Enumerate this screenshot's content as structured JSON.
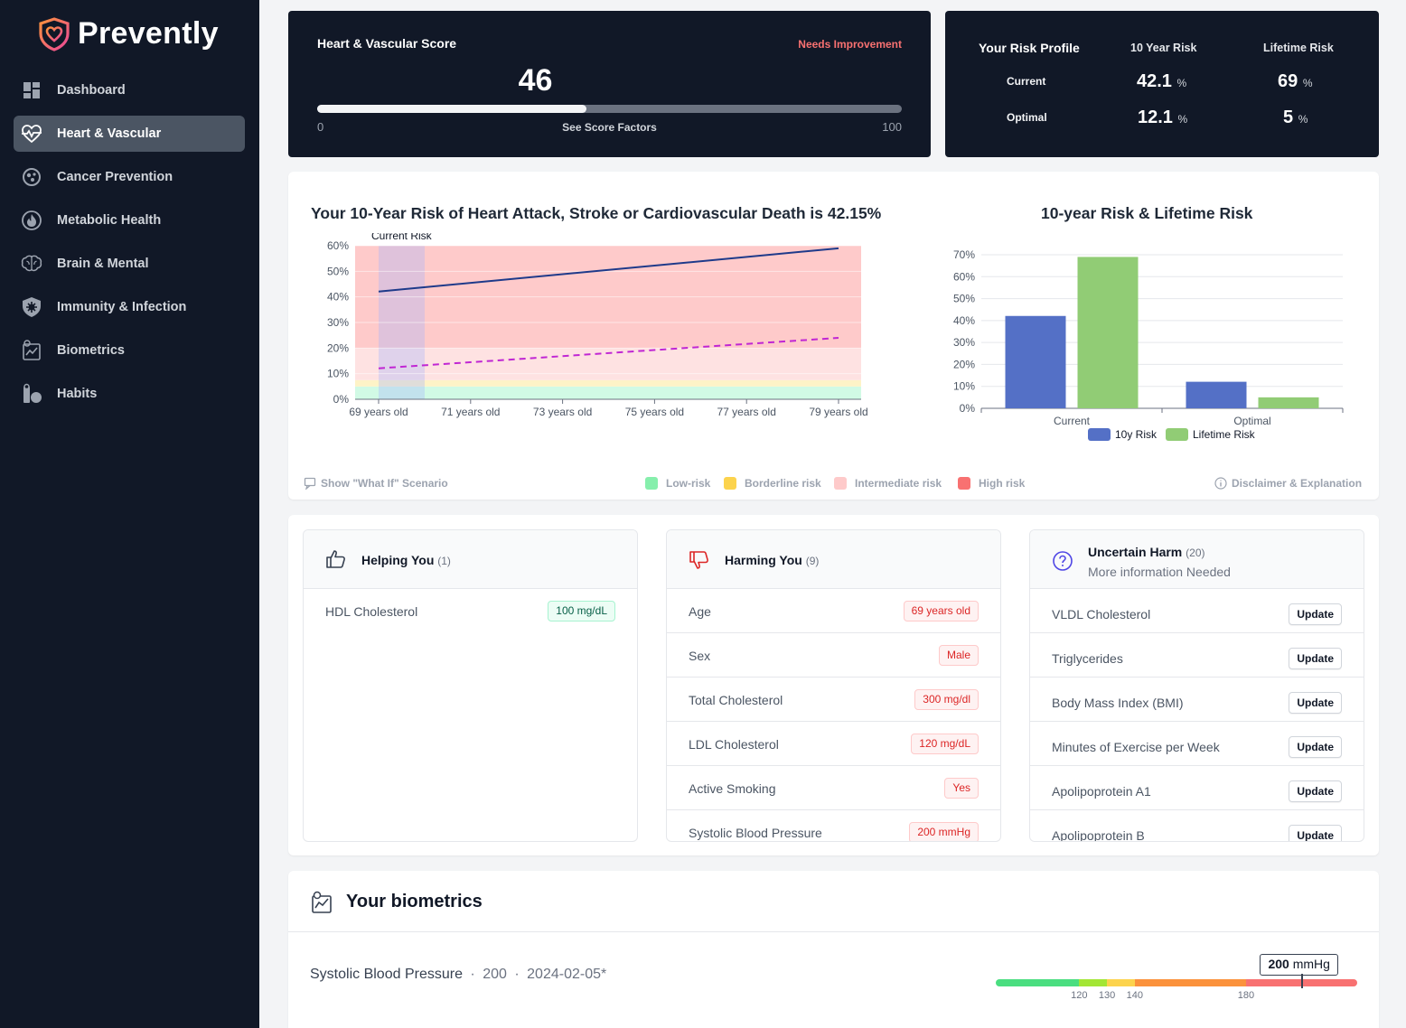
{
  "app": {
    "name": "Prevently",
    "brand_color": "#f472b6"
  },
  "sidebar": {
    "items": [
      {
        "label": "Dashboard",
        "icon": "dashboard-icon",
        "active": false
      },
      {
        "label": "Heart & Vascular",
        "icon": "heart-pulse-icon",
        "active": true
      },
      {
        "label": "Cancer Prevention",
        "icon": "cell-icon",
        "active": false
      },
      {
        "label": "Metabolic Health",
        "icon": "flame-icon",
        "active": false
      },
      {
        "label": "Brain & Mental",
        "icon": "brain-icon",
        "active": false
      },
      {
        "label": "Immunity & Infection",
        "icon": "shield-virus-icon",
        "active": false
      },
      {
        "label": "Biometrics",
        "icon": "biometrics-icon",
        "active": false
      },
      {
        "label": "Habits",
        "icon": "habits-icon",
        "active": false
      }
    ]
  },
  "score": {
    "title": "Heart & Vascular Score",
    "status": "Needs Improvement",
    "value": "46",
    "fraction": 0.46,
    "min": "0",
    "max": "100",
    "link": "See Score Factors"
  },
  "risk_profile": {
    "title": "Your Risk Profile",
    "col_10y": "10 Year Risk",
    "col_lifetime": "Lifetime Risk",
    "current_label": "Current",
    "optimal_label": "Optimal",
    "current_10y": "42.1",
    "current_lifetime": "69",
    "optimal_10y": "12.1",
    "optimal_lifetime": "5",
    "unit": "%"
  },
  "charts": {
    "line_title": "Your 10-Year Risk of Heart Attack, Stroke or Cardiovascular Death is 42.15%",
    "bar_title": "10-year Risk & Lifetime Risk"
  },
  "chart_data": [
    {
      "type": "line",
      "annotation": "Current Risk",
      "x": [
        "69 years old",
        "71 years old",
        "73 years old",
        "75 years old",
        "77 years old",
        "79 years old"
      ],
      "ylim": [
        0,
        60
      ],
      "yticks": [
        "0%",
        "10%",
        "20%",
        "30%",
        "40%",
        "50%",
        "60%"
      ],
      "series": [
        {
          "name": "Current",
          "style": "solid",
          "color": "#1e3a8a",
          "start": 42.1,
          "end": 59
        },
        {
          "name": "Optimal",
          "style": "dashed",
          "color": "#c026d3",
          "start": 12.1,
          "end": 24
        }
      ],
      "bands": [
        {
          "name": "Low-risk",
          "from": 0,
          "to": 5,
          "color": "#d1fae5"
        },
        {
          "name": "Borderline risk",
          "from": 5,
          "to": 7.5,
          "color": "#fef3c7"
        },
        {
          "name": "Intermediate risk",
          "from": 7.5,
          "to": 20,
          "color": "#fee2e2"
        },
        {
          "name": "High risk",
          "from": 20,
          "to": 60,
          "color": "#fecaca"
        }
      ]
    },
    {
      "type": "bar",
      "categories": [
        "Current",
        "Optimal"
      ],
      "ylim": [
        0,
        70
      ],
      "yticks": [
        "0%",
        "10%",
        "20%",
        "30%",
        "40%",
        "50%",
        "60%",
        "70%"
      ],
      "series": [
        {
          "name": "10y Risk",
          "color": "#5470c6",
          "values": [
            42.1,
            12.1
          ]
        },
        {
          "name": "Lifetime Risk",
          "color": "#91cc75",
          "values": [
            69,
            5
          ]
        }
      ]
    }
  ],
  "chart_footer": {
    "what_if": "Show \"What If\" Scenario",
    "low": "Low-risk",
    "borderline": "Borderline risk",
    "intermediate": "Intermediate risk",
    "high": "High risk",
    "disclaimer": "Disclaimer & Explanation",
    "colors": {
      "low": "#86efac",
      "borderline": "#fcd34d",
      "intermediate": "#fecaca",
      "high": "#f87171"
    }
  },
  "helping": {
    "title": "Helping You",
    "count": "(1)",
    "rows": [
      {
        "label": "HDL Cholesterol",
        "value": "100 mg/dL"
      }
    ]
  },
  "harming": {
    "title": "Harming You",
    "count": "(9)",
    "rows": [
      {
        "label": "Age",
        "value": "69 years old"
      },
      {
        "label": "Sex",
        "value": "Male"
      },
      {
        "label": "Total Cholesterol",
        "value": "300 mg/dl"
      },
      {
        "label": "LDL Cholesterol",
        "value": "120 mg/dL"
      },
      {
        "label": "Active Smoking",
        "value": "Yes"
      },
      {
        "label": "Systolic Blood Pressure",
        "value": "200 mmHg"
      }
    ]
  },
  "uncertain": {
    "title": "Uncertain Harm",
    "count": "(20)",
    "subtitle": "More information Needed",
    "button_label": "Update",
    "rows": [
      {
        "label": "VLDL Cholesterol"
      },
      {
        "label": "Triglycerides"
      },
      {
        "label": "Body Mass Index (BMI)"
      },
      {
        "label": "Minutes of Exercise per Week"
      },
      {
        "label": "Apolipoprotein A1"
      },
      {
        "label": "Apolipoprotein B"
      }
    ]
  },
  "biometrics": {
    "title": "Your biometrics",
    "row": {
      "name": "Systolic Blood Pressure",
      "sep": "·",
      "value": "200",
      "date": "2024-02-05*",
      "badge": "200",
      "badge_unit": "mmHg",
      "scale_min": 90,
      "scale_max": 220,
      "ticks": [
        "120",
        "130",
        "140",
        "180"
      ],
      "tick_values": [
        120,
        130,
        140,
        180
      ],
      "segments": [
        {
          "to": 120,
          "color": "#4ade80"
        },
        {
          "to": 130,
          "color": "#a3e635"
        },
        {
          "to": 140,
          "color": "#fcd34d"
        },
        {
          "to": 180,
          "color": "#fb923c"
        },
        {
          "to": 220,
          "color": "#f87171"
        }
      ]
    }
  }
}
